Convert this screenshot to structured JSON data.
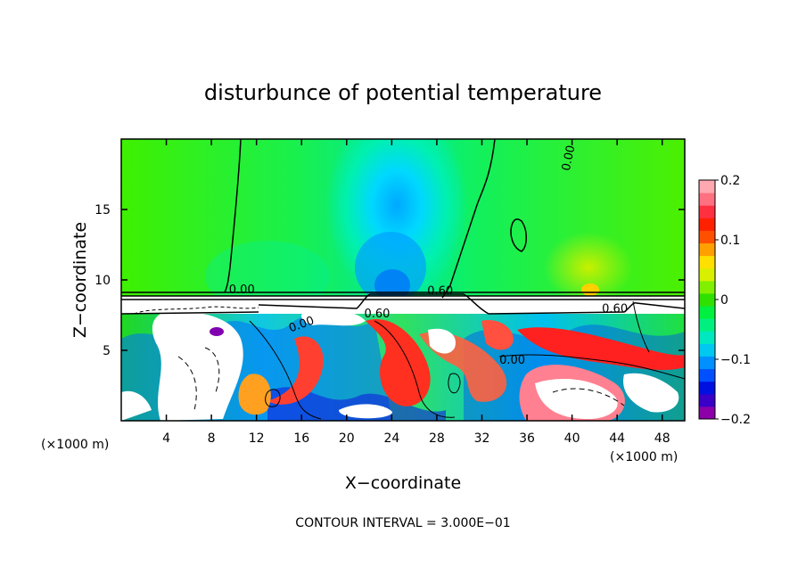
{
  "chart_data": {
    "type": "heatmap",
    "title": "disturbunce of potential temperature",
    "xlabel": "X−coordinate",
    "ylabel": "Z−coordinate",
    "x_unit_left": "(×1000 m)",
    "x_unit_right": "(×1000 m)",
    "xlim": [
      0,
      50
    ],
    "ylim": [
      0,
      20
    ],
    "x_ticks": [
      4,
      8,
      12,
      16,
      20,
      24,
      28,
      32,
      36,
      40,
      44,
      48
    ],
    "y_ticks": [
      5,
      10,
      15
    ],
    "colorbar": {
      "range": [
        -0.2,
        0.2
      ],
      "tick_values": [
        0.2,
        0.1,
        0,
        -0.1,
        -0.2
      ],
      "tick_labels": [
        "0.2",
        "0.1",
        "0",
        "−0.1",
        "−0.2"
      ],
      "colors": [
        "#8b00a8",
        "#3a00c8",
        "#0010e0",
        "#0050ff",
        "#0090ff",
        "#00c8f0",
        "#00e8c0",
        "#00f080",
        "#00f040",
        "#30e000",
        "#80f000",
        "#d8f000",
        "#ffe000",
        "#ffa000",
        "#ff5000",
        "#ff2000",
        "#ff3040",
        "#ff7080",
        "#ffa8b0"
      ]
    },
    "contour_interval_text": "CONTOUR INTERVAL = 3.000E−01",
    "contour_labels": [
      {
        "text": "0.00",
        "x": 40,
        "y": 18.6,
        "rotate": -78
      },
      {
        "text": "0.00",
        "x": 10.7,
        "y": 9.05,
        "rotate": 0
      },
      {
        "text": "0.60",
        "x": 22.7,
        "y": 7.35,
        "rotate": 0
      },
      {
        "text": "0.60",
        "x": 28.3,
        "y": 8.95,
        "rotate": 0
      },
      {
        "text": "0.60",
        "x": 43.8,
        "y": 7.7,
        "rotate": 0
      },
      {
        "text": "0.00",
        "x": 34.7,
        "y": 4.05,
        "rotate": 0
      },
      {
        "text": "0.00",
        "x": 16.1,
        "y": 6.6,
        "rotate": -20
      }
    ],
    "grid": false,
    "legend": "right"
  }
}
